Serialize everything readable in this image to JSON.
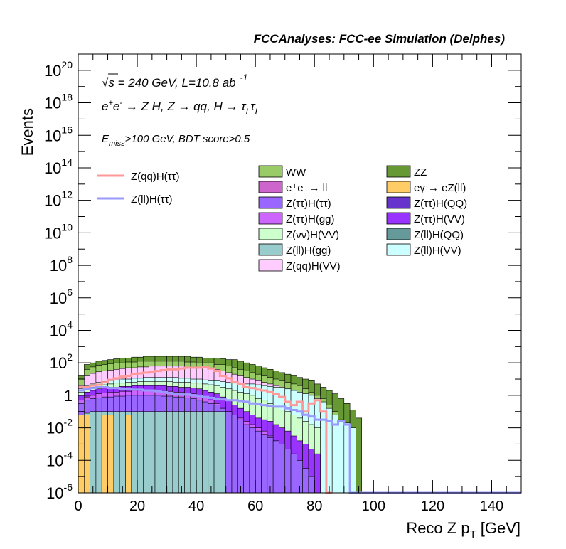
{
  "chart_data": {
    "type": "bar",
    "title": "FCCAnalyses: FCC-ee Simulation (Delphes)",
    "xlabel_main": "Reco Z p",
    "xlabel_sub": "T",
    "xlabel_unit": "[GeV]",
    "ylabel": "Events",
    "xlim": [
      0,
      150
    ],
    "ylim_log10": [
      -6,
      21
    ],
    "log_y": true,
    "grid": false,
    "bin_width": 2,
    "x_ticks": [
      "0",
      "20",
      "40",
      "60",
      "80",
      "100",
      "120",
      "140"
    ],
    "y_ticks": [
      {
        "base": "10",
        "exp": "-6",
        "v": -6
      },
      {
        "base": "10",
        "exp": "-4",
        "v": -4
      },
      {
        "base": "10",
        "exp": "-2",
        "v": -2
      },
      {
        "base": "1",
        "exp": "",
        "v": 0
      },
      {
        "base": "10",
        "exp": "2",
        "v": 2
      },
      {
        "base": "10",
        "exp": "4",
        "v": 4
      },
      {
        "base": "10",
        "exp": "6",
        "v": 6
      },
      {
        "base": "10",
        "exp": "8",
        "v": 8
      },
      {
        "base": "10",
        "exp": "10",
        "v": 10
      },
      {
        "base": "10",
        "exp": "12",
        "v": 12
      },
      {
        "base": "10",
        "exp": "14",
        "v": 14
      },
      {
        "base": "10",
        "exp": "16",
        "v": 16
      },
      {
        "base": "10",
        "exp": "18",
        "v": 18
      },
      {
        "base": "10",
        "exp": "20",
        "v": 20
      }
    ],
    "annotations": {
      "sqrt": "√s",
      "energy": " = 240 GeV, L=10.8 ab",
      "lumi_exp": "-1",
      "process_a": "e",
      "process_plus": "+",
      "process_b": "e",
      "process_minus": "-",
      "process_c": " → Z H, Z  → qq, H  → τ",
      "process_sub1": "L",
      "process_d": "τ",
      "process_sub2": "L",
      "cut_e": "E",
      "cut_sub": "miss",
      "cut_rest": ">100 GeV, BDT score>0.5"
    },
    "legend_placement": "top-center",
    "legend_signal": [
      {
        "name": "Z(qq)H(ττ)",
        "color": "#ff9999"
      },
      {
        "name": "Z(ll)H(ττ)",
        "color": "#9999ff"
      }
    ],
    "legend_bkg": [
      {
        "name": "WW",
        "color": "#99cc66"
      },
      {
        "name": "ZZ",
        "color": "#669933"
      },
      {
        "name": "e⁺e⁻→ ll",
        "color": "#cc66cc"
      },
      {
        "name": "eγ → eZ(ll)",
        "color": "#ffcc66"
      },
      {
        "name": "Z(ττ)H(ττ)",
        "color": "#9966ff"
      },
      {
        "name": "Z(ττ)H(QQ)",
        "color": "#6633cc"
      },
      {
        "name": "Z(ττ)H(gg)",
        "color": "#cc66ff"
      },
      {
        "name": "Z(ττ)H(VV)",
        "color": "#9933ff"
      },
      {
        "name": "Z(νν)H(VV)",
        "color": "#ccffcc"
      },
      {
        "name": "Z(ll)H(QQ)",
        "color": "#669999"
      },
      {
        "name": "Z(ll)H(gg)",
        "color": "#99cccc"
      },
      {
        "name": "Z(ll)H(VV)",
        "color": "#ccffff"
      },
      {
        "name": "Z(qq)H(VV)",
        "color": "#ffccff"
      }
    ],
    "stack_envelopes_log10": [
      {
        "name": "ZZ",
        "color": "#669933",
        "values": [
          1.2,
          1.9,
          2.0,
          2.1,
          2.15,
          2.2,
          2.25,
          2.3,
          2.3,
          2.35,
          2.35,
          2.4,
          2.4,
          2.4,
          2.4,
          2.4,
          2.4,
          2.4,
          2.4,
          2.35,
          2.35,
          2.3,
          2.3,
          2.3,
          2.25,
          2.2,
          2.2,
          2.1,
          2.0,
          1.9,
          1.8,
          1.7,
          1.6,
          1.5,
          1.4,
          1.3,
          1.2,
          1.1,
          1.0,
          0.9,
          0.7,
          0.5,
          0.3,
          0.1,
          -0.2,
          -0.5,
          -0.9,
          -1.4,
          null,
          null,
          null,
          null,
          null,
          null,
          null,
          null,
          null,
          null,
          null,
          null,
          null,
          null,
          null,
          null,
          null,
          null,
          null,
          null,
          null,
          null,
          null,
          null,
          null,
          null,
          null
        ]
      },
      {
        "name": "WW",
        "color": "#99cc66",
        "values": [
          1.0,
          1.6,
          1.75,
          1.85,
          1.9,
          1.95,
          2.0,
          2.0,
          2.05,
          2.05,
          2.1,
          2.1,
          2.1,
          2.1,
          2.1,
          2.1,
          2.1,
          2.1,
          2.05,
          2.05,
          2.0,
          2.0,
          2.0,
          1.9,
          1.9,
          1.8,
          1.7,
          1.6,
          1.5,
          1.4,
          1.3,
          1.2,
          1.1,
          1.0,
          0.9,
          0.8,
          0.7,
          0.6,
          0.4,
          0.2,
          0.0,
          -0.2,
          -0.6,
          -1.0,
          null,
          null,
          null,
          null,
          null,
          null,
          null,
          null,
          null,
          null,
          null,
          null,
          null,
          null,
          null,
          null,
          null,
          null,
          null,
          null,
          null,
          null,
          null,
          null,
          null,
          null,
          null,
          null,
          null,
          null,
          null
        ]
      },
      {
        "name": "Z(qq)H(VV)",
        "color": "#ffccff",
        "values": [
          0.6,
          1.2,
          1.35,
          1.45,
          1.5,
          1.55,
          1.6,
          1.65,
          1.7,
          1.7,
          1.75,
          1.75,
          1.8,
          1.8,
          1.8,
          1.8,
          1.8,
          1.8,
          1.75,
          1.75,
          1.7,
          1.7,
          1.65,
          1.6,
          1.5,
          1.4,
          1.3,
          1.2,
          1.1,
          1.0,
          0.9,
          0.8,
          0.7,
          0.6,
          0.5,
          0.4,
          0.3,
          0.2,
          0.0,
          -0.3,
          -0.6,
          -1.0,
          null,
          null,
          null,
          null,
          null,
          null,
          null,
          null,
          null,
          null,
          null,
          null,
          null,
          null,
          null,
          null,
          null,
          null,
          null,
          null,
          null,
          null,
          null,
          null,
          null,
          null,
          null,
          null,
          null,
          null,
          null,
          null,
          null
        ]
      },
      {
        "name": "Z(ll)H(VV)",
        "color": "#ccffff",
        "values": [
          0.4,
          0.6,
          0.7,
          0.8,
          0.85,
          0.9,
          0.95,
          1.0,
          1.0,
          1.05,
          1.05,
          1.1,
          1.1,
          1.1,
          1.1,
          1.1,
          1.1,
          1.05,
          1.05,
          1.0,
          1.0,
          0.95,
          0.9,
          0.9,
          0.85,
          0.8,
          0.8,
          0.75,
          0.7,
          0.7,
          0.65,
          0.6,
          0.55,
          0.5,
          0.45,
          0.4,
          0.3,
          0.2,
          0.1,
          0.0,
          -0.2,
          -0.4,
          -0.8,
          -1.2,
          -1.5,
          -1.7,
          -2.0,
          null,
          null,
          null,
          null,
          null,
          null,
          null,
          null,
          null,
          null,
          null,
          null,
          null,
          null,
          null,
          null,
          null,
          null,
          null,
          null,
          null,
          null,
          null,
          null,
          null,
          null,
          null,
          null
        ]
      },
      {
        "name": "Z(νν)H(VV)",
        "color": "#ccffcc",
        "values": [
          0.2,
          0.4,
          0.5,
          0.6,
          0.65,
          0.7,
          0.75,
          0.75,
          0.8,
          0.8,
          0.85,
          0.85,
          0.85,
          0.85,
          0.85,
          0.85,
          0.8,
          0.8,
          0.8,
          0.75,
          0.75,
          0.7,
          0.65,
          0.6,
          0.5,
          0.4,
          0.3,
          0.2,
          0.1,
          0.0,
          -0.2,
          -0.3,
          -0.5,
          -0.7,
          -0.9,
          -1.0,
          -1.2,
          -1.4,
          -1.6,
          -1.8,
          -2.0,
          null,
          null,
          null,
          null,
          null,
          null,
          null,
          null,
          null,
          null,
          null,
          null,
          null,
          null,
          null,
          null,
          null,
          null,
          null,
          null,
          null,
          null,
          null,
          null,
          null,
          null,
          null,
          null,
          null,
          null,
          null,
          null,
          null,
          null
        ]
      },
      {
        "name": "Z(ττ)H(VV)",
        "color": "#9933ff",
        "values": [
          0.0,
          0.2,
          0.3,
          0.4,
          0.45,
          0.5,
          0.5,
          0.55,
          0.55,
          0.6,
          0.6,
          0.6,
          0.6,
          0.6,
          0.6,
          0.55,
          0.55,
          0.5,
          0.5,
          0.45,
          0.4,
          0.3,
          0.2,
          0.1,
          -0.1,
          -0.3,
          -0.6,
          -0.8,
          -1.0,
          -1.2,
          -1.4,
          -1.5,
          -1.6,
          -1.8,
          -2.0,
          -2.2,
          -2.5,
          -2.8,
          -3.0,
          -3.3,
          -3.6,
          null,
          null,
          null,
          null,
          null,
          null,
          null,
          null,
          null,
          null,
          null,
          null,
          null,
          null,
          null,
          null,
          null,
          null,
          null,
          null,
          null,
          null,
          null,
          null,
          null,
          null,
          null,
          null,
          null,
          null,
          null,
          null,
          null,
          null
        ]
      },
      {
        "name": "Z(ττ)H(gg)",
        "color": "#cc66ff",
        "values": [
          -0.3,
          -0.1,
          0.0,
          0.1,
          0.15,
          0.2,
          0.2,
          0.25,
          0.25,
          0.3,
          0.3,
          0.3,
          0.3,
          0.3,
          0.25,
          0.25,
          0.2,
          0.2,
          0.15,
          0.1,
          0.0,
          -0.1,
          -0.3,
          -0.5,
          -0.8,
          -1.0,
          -1.2,
          -1.4,
          -1.6,
          -1.8,
          -2.0,
          -2.2,
          -2.5,
          -2.8,
          -3.1,
          -3.5,
          -4.0,
          -4.5,
          -5.0,
          -5.5,
          -6.0,
          null,
          null,
          null,
          null,
          null,
          null,
          null,
          null,
          null,
          null,
          null,
          null,
          null,
          null,
          null,
          null,
          null,
          null,
          null,
          null,
          null,
          null,
          null,
          null,
          null,
          null,
          null,
          null,
          null,
          null,
          null,
          null,
          null,
          null
        ]
      },
      {
        "name": "Z(ττ)H(ττ)",
        "color": "#9966ff",
        "values": [
          -0.5,
          -0.3,
          -0.2,
          -0.15,
          -0.1,
          -0.1,
          -0.05,
          -0.05,
          0.0,
          0.0,
          0.0,
          0.0,
          0.0,
          0.0,
          -0.05,
          -0.05,
          -0.1,
          -0.1,
          -0.15,
          -0.2,
          -0.3,
          -0.4,
          -0.5,
          -0.6,
          -0.8,
          -1.0,
          -1.2,
          -1.5,
          -1.8,
          -2.0,
          -2.2,
          -2.4,
          -2.6,
          -2.8,
          -3.0,
          -3.3,
          -3.6,
          -4.0,
          -4.5,
          -5.0,
          -6.0,
          null,
          null,
          null,
          null,
          null,
          null,
          null,
          null,
          null,
          null,
          null,
          null,
          null,
          null,
          null,
          null,
          null,
          null,
          null,
          null,
          null,
          null,
          null,
          null,
          null,
          null,
          null,
          null,
          null,
          null,
          null,
          null,
          null,
          null
        ]
      },
      {
        "name": "Z(ll)H(gg)",
        "color": "#99cccc",
        "values": [
          -1.2,
          -1.1,
          -1.0,
          -1.0,
          -1.0,
          -1.0,
          -1.0,
          -1.0,
          -1.0,
          -1.0,
          -1.0,
          -1.0,
          -1.0,
          -1.0,
          -1.0,
          -1.0,
          -1.0,
          -1.0,
          -1.0,
          -1.0,
          -1.0,
          -1.0,
          -1.0,
          -1.0,
          -1.0,
          -6.0,
          -6.0,
          -6.0,
          -6.0,
          -6.0,
          -6.0,
          -6.0,
          -6.0,
          -6.0,
          -6.0,
          -6.0,
          -6.0,
          -6.0,
          -6.0,
          -6.0,
          -6.0,
          null,
          null,
          null,
          null,
          null,
          null,
          null,
          null,
          null,
          null,
          null,
          null,
          null,
          null,
          null,
          null,
          null,
          null,
          null,
          null,
          null,
          null,
          null,
          null,
          null,
          null,
          null,
          null,
          null,
          null,
          null,
          null,
          null,
          null
        ]
      },
      {
        "name": "eγ → eZ(ll)",
        "color": "#ffcc66",
        "values": [
          -1.2,
          -1.2,
          null,
          null,
          -1.2,
          -1.2,
          null,
          null,
          -1.2,
          null,
          null,
          null,
          null,
          null,
          null,
          null,
          null,
          null,
          null,
          null,
          null,
          null,
          null,
          null,
          null,
          null,
          null,
          null,
          null,
          null,
          null,
          null,
          null,
          null,
          null,
          null,
          null,
          null,
          null,
          null,
          null,
          null,
          null,
          null,
          null,
          null,
          null,
          null,
          null,
          null,
          null,
          null,
          null,
          null,
          null,
          null,
          null,
          null,
          null,
          null,
          null,
          null,
          null,
          null,
          null,
          null,
          null,
          null,
          null,
          null,
          null,
          null,
          null,
          null,
          null
        ]
      }
    ],
    "signal_lines_log10": [
      {
        "name": "Z(qq)H(ττ)",
        "color": "#ff9999",
        "values": [
          0.5,
          0.5,
          0.6,
          0.65,
          0.8,
          0.95,
          1.05,
          1.15,
          1.2,
          1.3,
          1.35,
          1.4,
          1.45,
          1.5,
          1.55,
          1.6,
          1.6,
          1.65,
          1.7,
          1.7,
          1.7,
          1.75,
          1.65,
          1.5,
          1.2,
          1.05,
          0.8,
          0.7,
          0.5,
          0.45,
          0.35,
          0.3,
          0.2,
          0.1,
          -0.1,
          -0.4,
          -0.6,
          -0.4,
          -1.0,
          -0.5,
          -0.3,
          -1.0,
          -6.0,
          null,
          null,
          null,
          null,
          null,
          null,
          null,
          null,
          null,
          null,
          null,
          null,
          null,
          null,
          null,
          null,
          null,
          null,
          null,
          null,
          null,
          null,
          null,
          null,
          null,
          null,
          null,
          null,
          null,
          null,
          null,
          null
        ]
      },
      {
        "name": "Z(ll)H(ττ)",
        "color": "#9999ff",
        "values": [
          0.3,
          0.4,
          0.45,
          0.5,
          0.5,
          0.45,
          0.45,
          0.4,
          0.4,
          0.35,
          0.35,
          0.3,
          0.3,
          0.25,
          0.2,
          0.15,
          0.1,
          0.05,
          0.05,
          0.0,
          -0.05,
          -0.1,
          -0.15,
          -0.2,
          -0.25,
          -0.3,
          -0.3,
          -0.35,
          -0.4,
          -0.5,
          -0.55,
          -0.6,
          -0.65,
          -0.7,
          -0.7,
          -0.8,
          -0.9,
          -1.0,
          -1.2,
          -1.3,
          -1.5,
          -1.5,
          -1.6,
          -1.8,
          -1.6,
          -1.8,
          -6.0,
          -6.0,
          -6.0,
          -6.0,
          -6.0,
          -6.0,
          -6.0,
          -6.0,
          -6.0,
          -6.0,
          -6.0,
          -6.0,
          -6.0,
          -6.0,
          -6.0,
          -6.0,
          -6.0,
          -6.0,
          -6.0,
          -6.0,
          -6.0,
          -6.0,
          -6.0,
          -6.0,
          -6.0,
          -6.0,
          -6.0,
          -6.0,
          -6.0
        ]
      }
    ]
  }
}
